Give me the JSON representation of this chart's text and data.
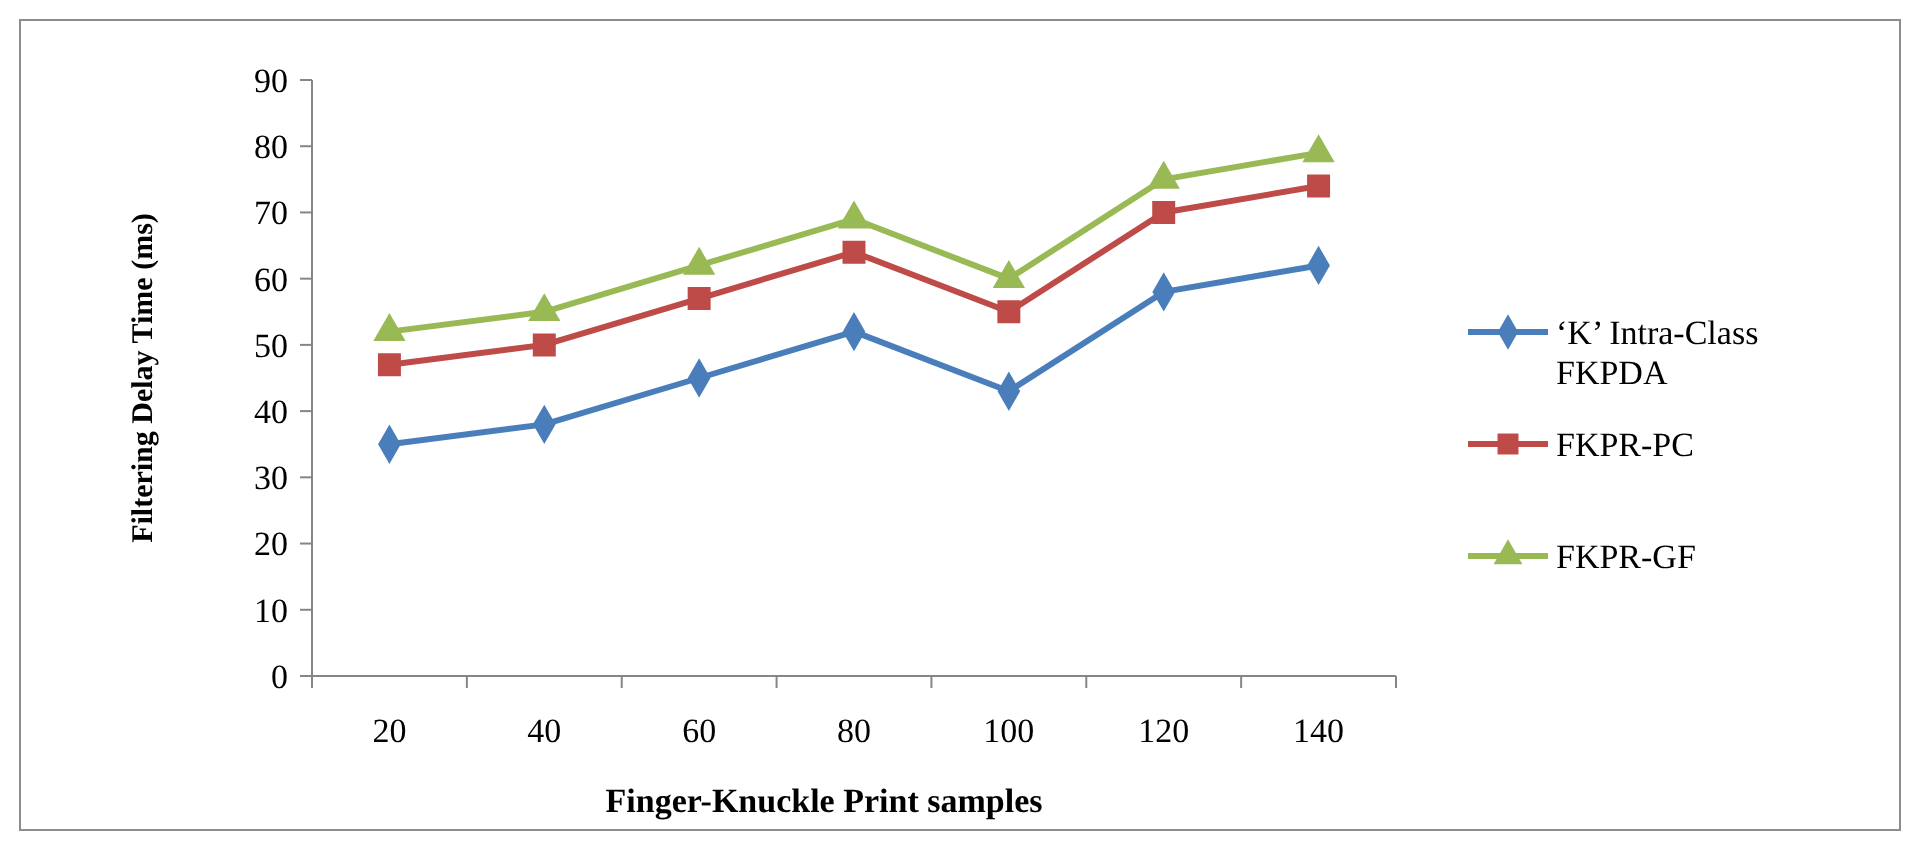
{
  "chart_data": {
    "type": "line",
    "xlabel": "Finger-Knuckle Print samples",
    "ylabel": "Filtering Delay Time (ms)",
    "categories": [
      "20",
      "40",
      "60",
      "80",
      "100",
      "120",
      "140"
    ],
    "ylim": [
      0,
      90
    ],
    "yticks": [
      0,
      10,
      20,
      30,
      40,
      50,
      60,
      70,
      80,
      90
    ],
    "grid": false,
    "legend": "right",
    "series": [
      {
        "name": "‘K’ Intra-Class FKPDA",
        "color": "#4a7ebb",
        "marker": "diamond",
        "values": [
          35,
          38,
          45,
          52,
          43,
          58,
          62
        ]
      },
      {
        "name": "FKPR-PC",
        "color": "#be4b48",
        "marker": "square",
        "values": [
          47,
          50,
          57,
          64,
          55,
          70,
          74
        ]
      },
      {
        "name": "FKPR-GF",
        "color": "#98b954",
        "marker": "triangle",
        "values": [
          52,
          55,
          62,
          69,
          60,
          75,
          79
        ]
      }
    ]
  }
}
